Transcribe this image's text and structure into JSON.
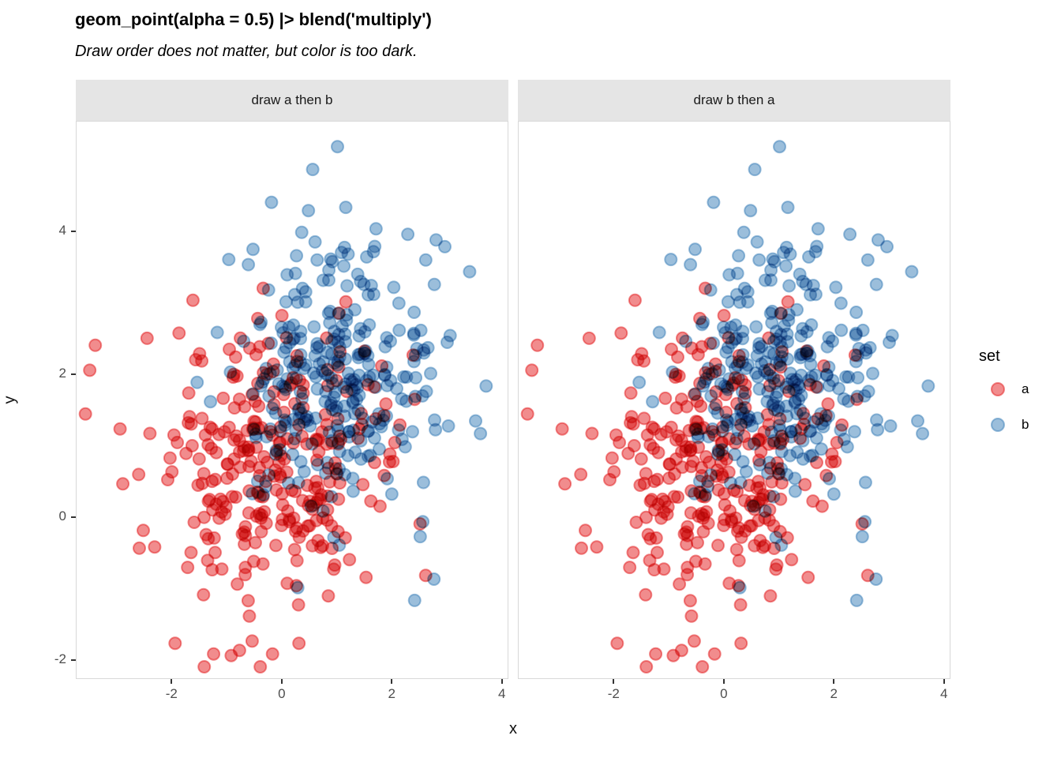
{
  "chart_data": {
    "type": "scatter",
    "title": "geom_point(alpha = 0.5) |> blend('multiply')",
    "subtitle": "Draw order does not matter, but color is too dark.",
    "alpha": 0.5,
    "blend_mode": "multiply",
    "point_radius_px": 7.5,
    "point_stroke_px": 2,
    "seed": 42,
    "background": "#FFFFFF",
    "colors": {
      "strip_bg": "#E5E5E5",
      "panel_border": "#D8D8D8",
      "tick_mark": "#333333",
      "tick_label": "#4D4D4D",
      "series_a": "#E41A1C",
      "series_b": "#377EB8"
    },
    "facets": [
      {
        "label": "draw a then b",
        "draw_order": [
          "a",
          "b"
        ]
      },
      {
        "label": "draw b then a",
        "draw_order": [
          "b",
          "a"
        ]
      }
    ],
    "series": [
      {
        "name": "a",
        "color": "#E41A1C",
        "n": 300,
        "mean": [
          -0.15,
          0.85
        ],
        "sd": [
          1.05,
          1.0
        ],
        "anchor_points": [
          [
            -3.4,
            2.42
          ],
          [
            -3.5,
            2.07
          ],
          [
            -2.95,
            1.25
          ],
          [
            -2.9,
            0.48
          ],
          [
            -2.6,
            -0.42
          ],
          [
            -1.95,
            -1.75
          ],
          [
            -1.25,
            -1.9
          ],
          [
            -0.78,
            -1.85
          ],
          [
            -0.55,
            -1.72
          ],
          [
            -0.18,
            -1.9
          ],
          [
            0.3,
            -1.75
          ],
          [
            2.5,
            -0.08
          ]
        ]
      },
      {
        "name": "b",
        "color": "#377EB8",
        "n": 300,
        "mean": [
          1.0,
          2.0
        ],
        "sd": [
          0.9,
          0.95
        ],
        "anchor_points": [
          [
            1.0,
            5.2
          ],
          [
            0.55,
            4.88
          ],
          [
            -0.2,
            4.42
          ],
          [
            1.15,
            4.35
          ],
          [
            1.7,
            4.05
          ],
          [
            0.35,
            4.0
          ],
          [
            2.95,
            3.8
          ],
          [
            3.4,
            3.45
          ],
          [
            3.7,
            1.85
          ],
          [
            -1.55,
            1.9
          ],
          [
            2.55,
            -0.05
          ],
          [
            2.4,
            -1.15
          ]
        ]
      }
    ],
    "axes": {
      "x": {
        "title": "x",
        "ticks": [
          -2,
          0,
          2,
          4
        ],
        "domain": [
          -3.74,
          4.09
        ]
      },
      "y": {
        "title": "y",
        "ticks": [
          -2,
          0,
          2,
          4
        ],
        "domain": [
          -2.24,
          5.55
        ]
      }
    },
    "legend": {
      "title": "set",
      "position": "right",
      "items": [
        {
          "label": "a",
          "series": "a"
        },
        {
          "label": "b",
          "series": "b"
        }
      ]
    }
  }
}
